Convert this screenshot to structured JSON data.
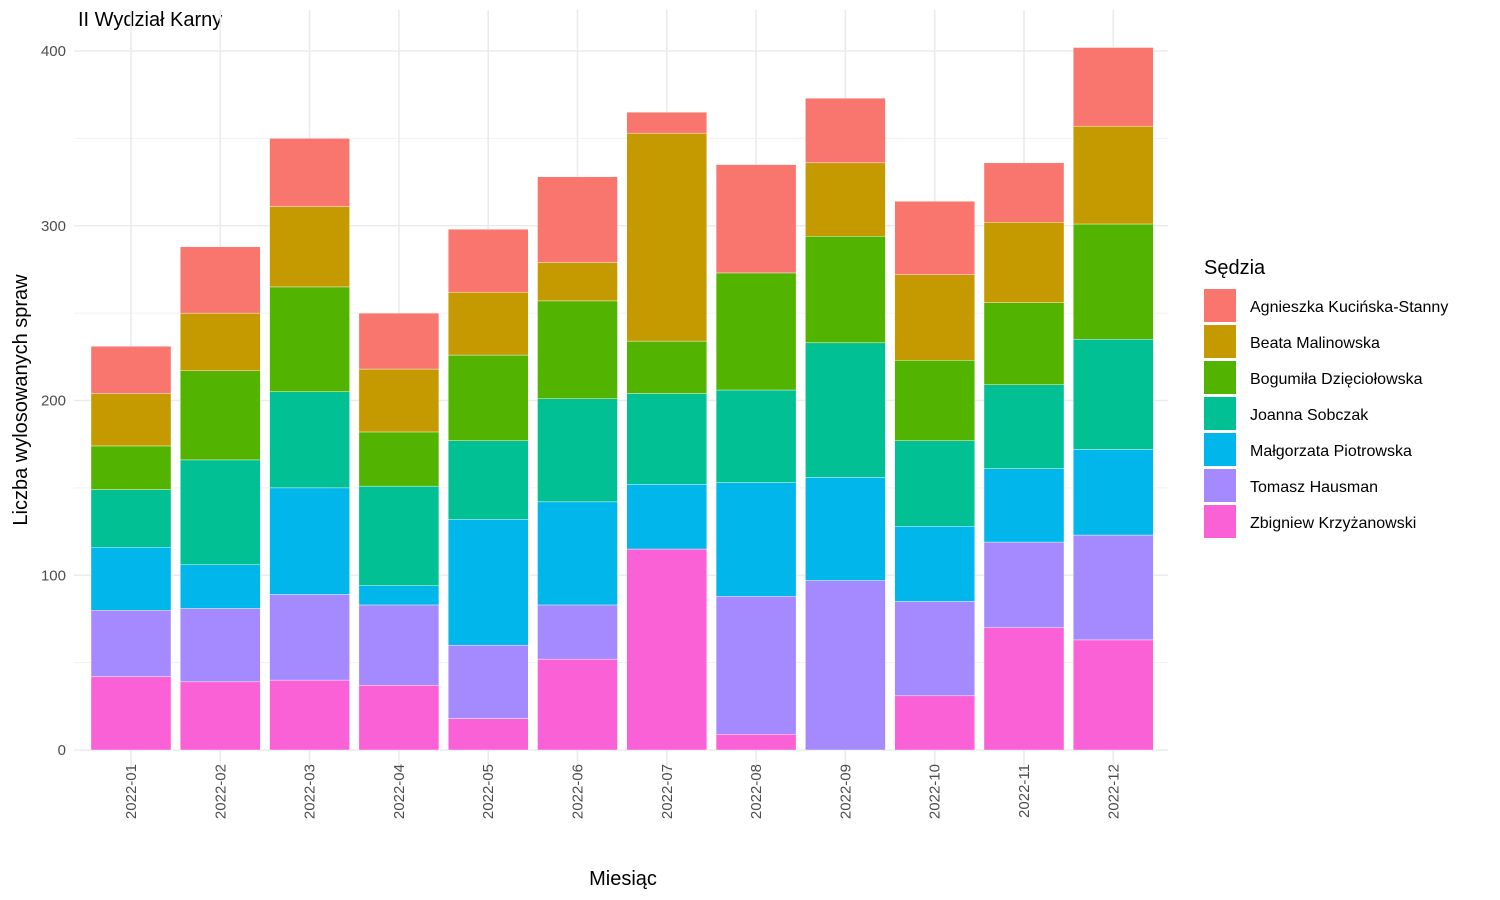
{
  "chart_data": {
    "type": "bar",
    "stacked": true,
    "title": "II Wydział Karny",
    "xlabel": "Miesiąc",
    "ylabel": "Liczba wylosowanych spraw",
    "ylim": [
      0,
      410
    ],
    "yticks": [
      0,
      100,
      200,
      300,
      400
    ],
    "grid": true,
    "legend_title": "Sędzia",
    "legend_position": "right",
    "categories": [
      "2022-01",
      "2022-02",
      "2022-03",
      "2022-04",
      "2022-05",
      "2022-06",
      "2022-07",
      "2022-08",
      "2022-09",
      "2022-10",
      "2022-11",
      "2022-12"
    ],
    "series": [
      {
        "name": "Agnieszka Kucińska-Stanny",
        "color": "#F8766D",
        "values": [
          27,
          38,
          39,
          32,
          36,
          49,
          12,
          62,
          37,
          42,
          34,
          45
        ]
      },
      {
        "name": "Beata Malinowska",
        "color": "#C49A00",
        "values": [
          30,
          33,
          46,
          36,
          36,
          22,
          119,
          0,
          42,
          49,
          46,
          56
        ]
      },
      {
        "name": "Bogumiła Dzięciołowska",
        "color": "#53B400",
        "values": [
          25,
          51,
          60,
          31,
          49,
          56,
          30,
          67,
          61,
          46,
          47,
          66
        ]
      },
      {
        "name": "Joanna Sobczak",
        "color": "#00C094",
        "values": [
          33,
          60,
          55,
          57,
          45,
          59,
          52,
          53,
          77,
          49,
          48,
          63
        ]
      },
      {
        "name": "Małgorzata Piotrowska",
        "color": "#00B6EB",
        "values": [
          36,
          25,
          61,
          11,
          72,
          59,
          37,
          65,
          59,
          43,
          42,
          49
        ]
      },
      {
        "name": "Tomasz Hausman",
        "color": "#A58AFF",
        "values": [
          38,
          42,
          49,
          46,
          42,
          31,
          0,
          79,
          97,
          54,
          49,
          60
        ]
      },
      {
        "name": "Zbigniew Krzyżanowski",
        "color": "#FB61D7",
        "values": [
          42,
          39,
          40,
          37,
          18,
          52,
          115,
          9,
          0,
          31,
          70,
          63
        ]
      }
    ]
  }
}
